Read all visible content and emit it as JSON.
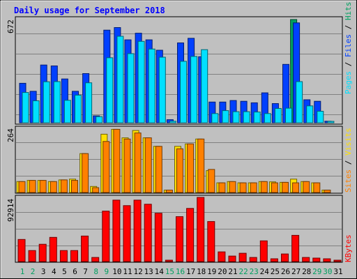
{
  "chart_data": [
    {
      "type": "bar",
      "title": "Daily usage for September 2018",
      "categories": [
        "1",
        "2",
        "3",
        "4",
        "5",
        "6",
        "7",
        "8",
        "9",
        "10",
        "11",
        "12",
        "13",
        "14",
        "15",
        "16",
        "17",
        "18",
        "19",
        "20",
        "21",
        "22",
        "23",
        "24",
        "25",
        "26",
        "27",
        "28",
        "29",
        "30",
        "31"
      ],
      "weekend_days": [
        "1",
        "2",
        "8",
        "9",
        "15",
        "16",
        "22",
        "23",
        "29",
        "30"
      ],
      "ymax_label": "672",
      "ylim": [
        0,
        672
      ],
      "legend": [
        "Pages",
        "Files",
        "Hits"
      ],
      "series": [
        {
          "name": "Hits",
          "values": [
            0,
            0,
            0,
            0,
            0,
            0,
            0,
            0,
            0,
            0,
            0,
            0,
            0,
            0,
            0,
            0,
            0,
            0,
            0,
            0,
            0,
            0,
            0,
            0,
            0,
            0,
            672,
            0,
            0,
            0,
            0
          ]
        },
        {
          "name": "Files",
          "values": [
            257,
            205,
            376,
            370,
            285,
            205,
            320,
            45,
            603,
            620,
            540,
            583,
            540,
            472,
            20,
            520,
            550,
            430,
            135,
            135,
            145,
            140,
            130,
            195,
            125,
            380,
            650,
            150,
            140,
            10,
            0
          ]
        },
        {
          "name": "Pages",
          "values": [
            197,
            143,
            267,
            268,
            146,
            180,
            260,
            40,
            423,
            563,
            450,
            530,
            480,
            427,
            10,
            400,
            432,
            476,
            60,
            79,
            72,
            72,
            70,
            60,
            93,
            95,
            268,
            110,
            75,
            5,
            0
          ]
        }
      ],
      "colors": {
        "Hits": "#00a060",
        "Files": "#0040ff",
        "Pages": "#00e0ff"
      }
    },
    {
      "type": "bar",
      "ymax_label": "264",
      "ylim": [
        0,
        264
      ],
      "legend": [
        "Sites",
        "Visits"
      ],
      "series": [
        {
          "name": "Visits",
          "values": [
            45,
            50,
            50,
            45,
            52,
            55,
            160,
            25,
            240,
            260,
            225,
            255,
            225,
            190,
            10,
            190,
            200,
            220,
            90,
            40,
            45,
            40,
            40,
            45,
            44,
            42,
            55,
            45,
            40,
            10,
            0
          ]
        },
        {
          "name": "Sites",
          "values": [
            45,
            50,
            50,
            45,
            52,
            50,
            160,
            20,
            210,
            260,
            220,
            245,
            225,
            190,
            10,
            180,
            200,
            220,
            95,
            40,
            45,
            40,
            40,
            45,
            40,
            42,
            40,
            45,
            40,
            10,
            0
          ]
        }
      ],
      "colors": {
        "Visits": "#ffe000",
        "Sites": "#ff8000"
      }
    },
    {
      "type": "bar",
      "ymax_label": "92914",
      "ylim": [
        0,
        92914
      ],
      "legend": [
        "KBytes"
      ],
      "series": [
        {
          "name": "KBytes",
          "values": [
            32000,
            16000,
            25000,
            35000,
            16000,
            16000,
            37000,
            6000,
            73000,
            89000,
            81000,
            89000,
            83000,
            70000,
            1000,
            65000,
            77000,
            92914,
            58000,
            14000,
            8000,
            12000,
            6000,
            30000,
            4000,
            11000,
            38000,
            6000,
            5000,
            4000,
            1000
          ]
        }
      ],
      "colors": {
        "KBytes": "#ff0000"
      }
    }
  ]
}
